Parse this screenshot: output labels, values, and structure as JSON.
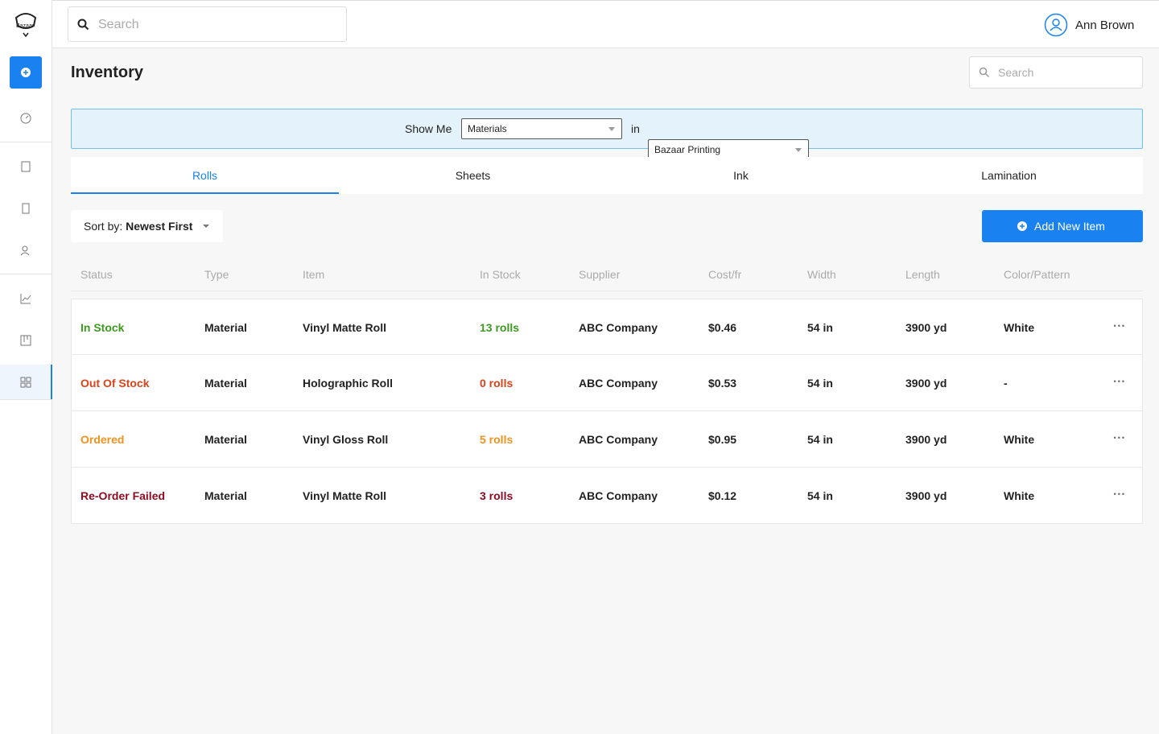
{
  "logo": "Bazaar",
  "top_search": "Search",
  "user": "Ann Brown",
  "page_title": "Inventory",
  "page_search": "Search",
  "filter": {
    "label": "Show Me",
    "category": "Materials",
    "connector": "in",
    "location": "Bazaar Printing"
  },
  "tabs": [
    "Rolls",
    "Sheets",
    "Ink",
    "Lamination"
  ],
  "active_tab": 0,
  "sort": {
    "label": "Sort by:",
    "value": "Newest First"
  },
  "add_button": "Add New Item",
  "table": {
    "columns": [
      "Status",
      "Type",
      "Item",
      "In Stock",
      "Supplier",
      "Cost/fr",
      "Width",
      "Length",
      "Color/Pattern"
    ],
    "rows": [
      {
        "color": "#3c9a1f",
        "cells": [
          "In Stock",
          "Material",
          "Vinyl Matte Roll",
          "13 rolls",
          "ABC Company",
          "$0.46",
          "54 in",
          "3900 yd",
          "White"
        ]
      },
      {
        "color": "#d9421a",
        "cells": [
          "Out Of Stock",
          "Material",
          "Holographic Roll",
          "0 rolls",
          "ABC Company",
          "$0.53",
          "54 in",
          "3900 yd",
          "-"
        ]
      },
      {
        "color": "#f0921e",
        "cells": [
          "Ordered",
          "Material",
          "Vinyl Gloss Roll",
          "5 rolls",
          "ABC Company",
          "$0.95",
          "54 in",
          "3900 yd",
          "White"
        ]
      },
      {
        "color": "#8e0b22",
        "cells": [
          "Re-Order Failed",
          "Material",
          "Vinyl Matte Roll",
          "3 rolls",
          "ABC Company",
          "$0.12",
          "54 in",
          "3900 yd",
          "White"
        ]
      }
    ]
  }
}
